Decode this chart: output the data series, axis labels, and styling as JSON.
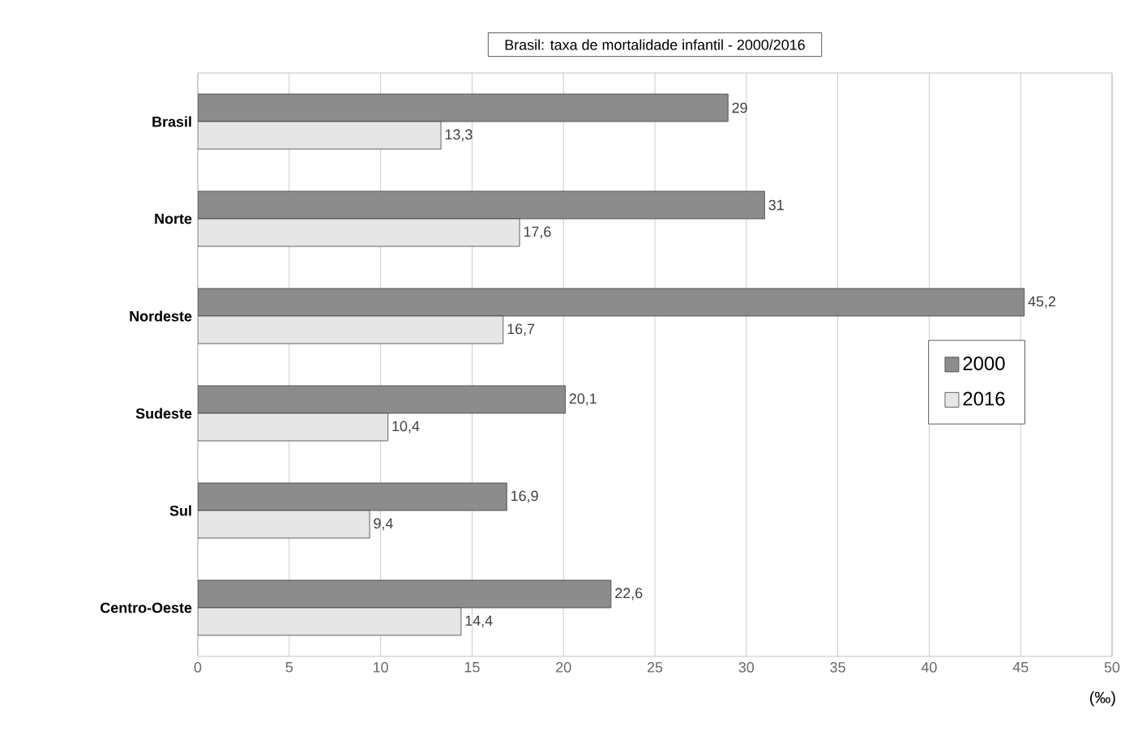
{
  "chart_data": {
    "type": "bar",
    "orientation": "horizontal",
    "title": "Brasil: taxa de mortalidade infantil - 2000/2016",
    "xlabel": "(‰)",
    "categories": [
      "Brasil",
      "Norte",
      "Nordeste",
      "Sudeste",
      "Sul",
      "Centro-Oeste"
    ],
    "series": [
      {
        "name": "2000",
        "color": "#8c8c8c",
        "values": [
          29,
          31,
          45.2,
          20.1,
          16.9,
          22.6
        ],
        "value_labels": [
          "29",
          "31",
          "45,2",
          "20,1",
          "16,9",
          "22,6"
        ]
      },
      {
        "name": "2016",
        "color": "#e6e6e6",
        "values": [
          13.3,
          17.6,
          16.7,
          10.4,
          9.4,
          14.4
        ],
        "value_labels": [
          "13,3",
          "17,6",
          "16,7",
          "10,4",
          "9,4",
          "14,4"
        ]
      }
    ],
    "xlim": [
      0,
      50
    ],
    "xticks": [
      0,
      5,
      10,
      15,
      20,
      25,
      30,
      35,
      40,
      45,
      50
    ],
    "grid": "x",
    "legend": "right"
  }
}
